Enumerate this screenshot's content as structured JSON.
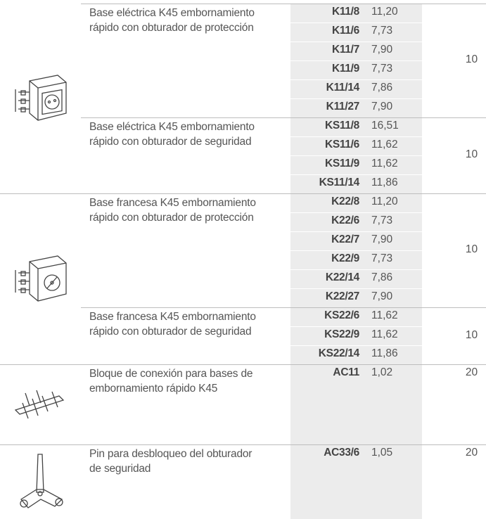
{
  "families": [
    {
      "groups": [
        {
          "description": [
            "Base eléctrica K45 embornamiento",
            "rápido con obturador de protección"
          ],
          "items": [
            {
              "code": "K11/8",
              "price": "11,20"
            },
            {
              "code": "K11/6",
              "price": "7,73"
            },
            {
              "code": "K11/7",
              "price": "7,90"
            },
            {
              "code": "K11/9",
              "price": "7,73"
            },
            {
              "code": "K11/14",
              "price": "7,86"
            },
            {
              "code": "K11/27",
              "price": "7,90"
            }
          ],
          "quantity": "10"
        },
        {
          "description": [
            "Base eléctrica K45 embornamiento",
            "rápido con obturador de seguridad"
          ],
          "items": [
            {
              "code": "KS11/8",
              "price": "16,51"
            },
            {
              "code": "KS11/6",
              "price": "11,62"
            },
            {
              "code": "KS11/9",
              "price": "11,62"
            },
            {
              "code": "KS11/14",
              "price": "11,86"
            }
          ],
          "quantity": "10"
        }
      ]
    },
    {
      "groups": [
        {
          "description": [
            "Base francesa K45 embornamiento",
            "rápido con obturador de protección"
          ],
          "items": [
            {
              "code": "K22/8",
              "price": "11,20"
            },
            {
              "code": "K22/6",
              "price": "7,73"
            },
            {
              "code": "K22/7",
              "price": "7,90"
            },
            {
              "code": "K22/9",
              "price": "7,73"
            },
            {
              "code": "K22/14",
              "price": "7,86"
            },
            {
              "code": "K22/27",
              "price": "7,90"
            }
          ],
          "quantity": "10"
        },
        {
          "description": [
            "Base francesa K45 embornamiento",
            "rápido con obturador de seguridad"
          ],
          "items": [
            {
              "code": "KS22/6",
              "price": "11,62"
            },
            {
              "code": "KS22/9",
              "price": "11,62"
            },
            {
              "code": "KS22/14",
              "price": "11,86"
            }
          ],
          "quantity": "10"
        }
      ]
    },
    {
      "groups": [
        {
          "description": [
            "Bloque de conexión para bases de",
            "embornamiento rápido K45"
          ],
          "items": [
            {
              "code": "AC11",
              "price": "1,02"
            }
          ],
          "quantity": "20"
        }
      ]
    },
    {
      "groups": [
        {
          "description": [
            "Pin para desbloqueo del obturador",
            "de seguridad"
          ],
          "items": [
            {
              "code": "AC33/6",
              "price": "1,05"
            }
          ],
          "quantity": "20"
        }
      ]
    }
  ]
}
